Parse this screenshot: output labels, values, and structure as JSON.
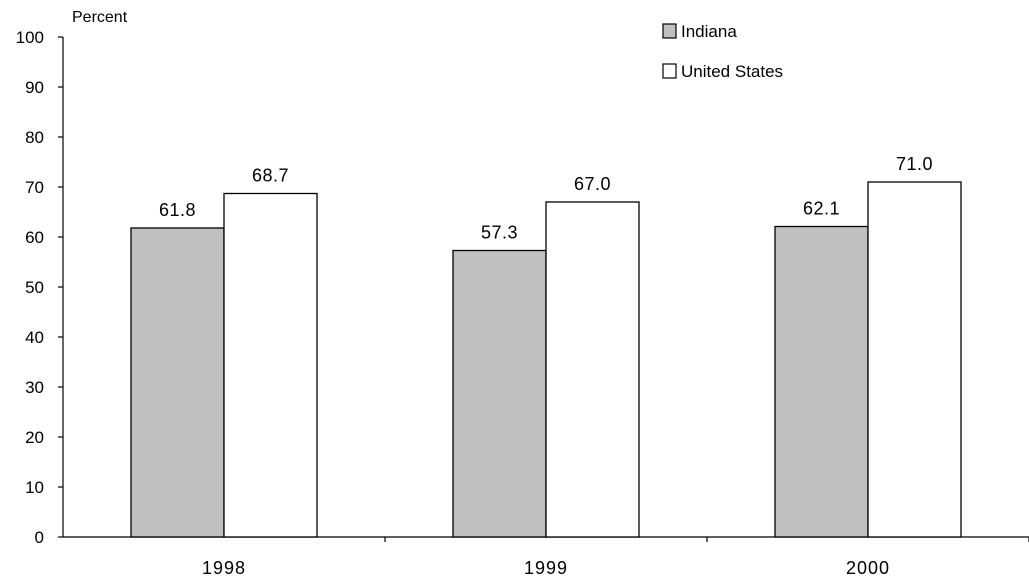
{
  "chart_data": {
    "type": "bar",
    "ylabel": "Percent",
    "ylim": [
      0,
      100
    ],
    "y_ticks": [
      "0",
      "10",
      "20",
      "30",
      "40",
      "50",
      "60",
      "70",
      "80",
      "90",
      "100"
    ],
    "categories": [
      "1998",
      "1999",
      "2000"
    ],
    "series": [
      {
        "name": "Indiana",
        "values": [
          61.8,
          57.3,
          62.1
        ],
        "labels": [
          "61.8",
          "57.3",
          "62.1"
        ],
        "color": "#c0c0c0"
      },
      {
        "name": "United States",
        "values": [
          68.7,
          67.0,
          71.0
        ],
        "labels": [
          "68.7",
          "67.0",
          "71.0"
        ],
        "color": "#ffffff"
      }
    ],
    "legend_position": "top-right",
    "grid": false
  }
}
